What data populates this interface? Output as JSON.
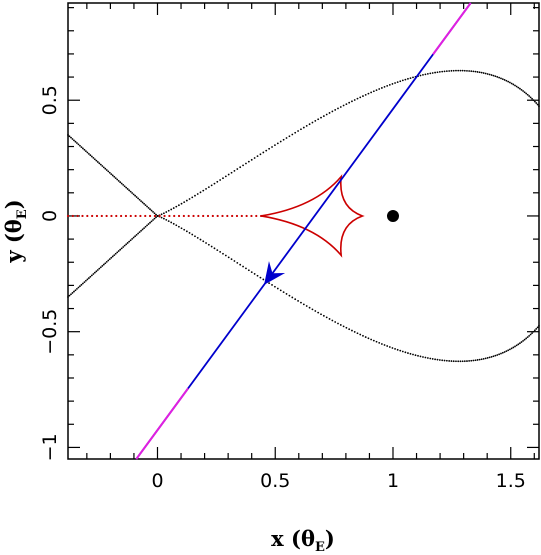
{
  "chart_data": {
    "type": "scatter",
    "title": "",
    "xlabel": {
      "main": "x (θ",
      "sub": "E",
      "close": ")"
    },
    "ylabel": {
      "main": "y (θ",
      "sub": "E",
      "close": ")"
    },
    "xlim": [
      -0.38,
      1.62
    ],
    "ylim": [
      -1.05,
      0.92
    ],
    "xticks": [
      0,
      0.5,
      1,
      1.5
    ],
    "xtick_labels": [
      "0",
      "0.5",
      "1",
      "1.5"
    ],
    "yticks": [
      -1,
      -0.5,
      0,
      0.5
    ],
    "ytick_labels": [
      "−1",
      "−0.5",
      "0",
      "0.5"
    ],
    "grid": false,
    "colors": {
      "critical_curve": "#000000",
      "caustic": "#cc0000",
      "trajectory": "#0000cc",
      "trajectory_ends": "#e020e0",
      "lens": "#000000"
    },
    "lens_position": {
      "x": 1.0,
      "y": 0.0
    },
    "trajectory": {
      "start": {
        "x": -0.09,
        "y": -1.05
      },
      "end": {
        "x": 1.33,
        "y": 0.92
      },
      "magenta_segments": [
        [
          -0.09,
          0.13
        ],
        [
          1.17,
          1.33
        ]
      ],
      "arrow_at": {
        "x": 0.48,
        "y": -0.27
      }
    },
    "caustic_cusps": [
      {
        "x": 0.78,
        "y": 0.17
      },
      {
        "x": 0.87,
        "y": 0.0
      },
      {
        "x": 0.78,
        "y": -0.17
      },
      {
        "x": 0.44,
        "y": 0.0
      }
    ],
    "caustic_dotted_range": [
      -0.38,
      0.44
    ],
    "critical_curve": {
      "loop_right_x": 1.62,
      "loop_top": {
        "x": 1.05,
        "y": 0.68
      },
      "loop_bottom": {
        "x": 1.05,
        "y": -0.68
      },
      "crossing_x": 0.0,
      "left_branch_y_at_xmin": 0.35
    }
  }
}
